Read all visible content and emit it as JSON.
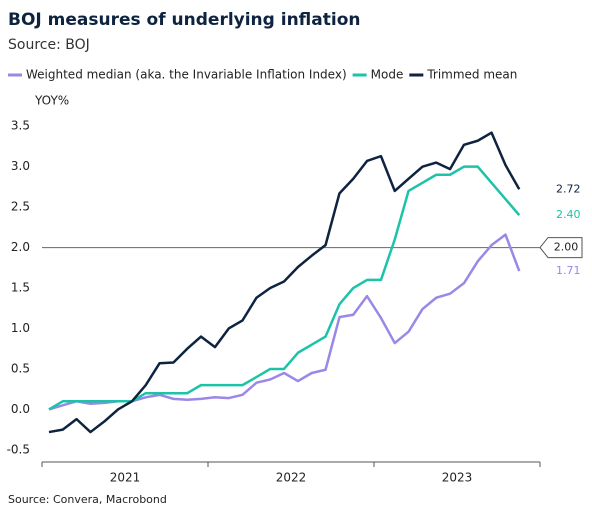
{
  "chart_data": {
    "type": "line",
    "title": "BOJ measures of underlying inflation",
    "subtitle": "Source: BOJ",
    "y_label": "YOY%",
    "source": "Source: Convera, Macrobond",
    "x": [
      2021.042,
      2021.125,
      2021.208,
      2021.292,
      2021.375,
      2021.458,
      2021.542,
      2021.625,
      2021.708,
      2021.792,
      2021.875,
      2021.958,
      2022.042,
      2022.125,
      2022.208,
      2022.292,
      2022.375,
      2022.458,
      2022.542,
      2022.625,
      2022.708,
      2022.792,
      2022.875,
      2022.958,
      2023.042,
      2023.125,
      2023.208,
      2023.292,
      2023.375,
      2023.458,
      2023.542,
      2023.625,
      2023.708,
      2023.792,
      2023.875
    ],
    "xlim": [
      2021,
      2024
    ],
    "xticks": [
      {
        "value": 2021,
        "label": "2021"
      },
      {
        "value": 2022,
        "label": "2022"
      },
      {
        "value": 2023,
        "label": "2023"
      }
    ],
    "ylim": [
      -0.65,
      3.7
    ],
    "yticks": [
      -0.5,
      0.0,
      0.5,
      1.0,
      1.5,
      2.0,
      2.5,
      3.0,
      3.5
    ],
    "ytick_labels": [
      "-0.5",
      "0.0",
      "0.5",
      "1.0",
      "1.5",
      "2.0",
      "2.5",
      "3.0",
      "3.5"
    ],
    "reference_line": {
      "value": 2.0,
      "label": "2.00"
    },
    "series": [
      {
        "name": "Weighted median (aka. the Invariable Inflation Index)",
        "color": "#9b87e8",
        "values": [
          0.0,
          0.05,
          0.1,
          0.07,
          0.08,
          0.1,
          0.1,
          0.15,
          0.18,
          0.13,
          0.12,
          0.13,
          0.15,
          0.14,
          0.18,
          0.33,
          0.37,
          0.45,
          0.35,
          0.45,
          0.49,
          1.14,
          1.17,
          1.4,
          1.13,
          0.82,
          0.96,
          1.24,
          1.38,
          1.43,
          1.56,
          1.83,
          2.03,
          2.16,
          1.71
        ],
        "value_labels": [
          null,
          null,
          null,
          null,
          null,
          null,
          null,
          null,
          null,
          null,
          null,
          null,
          null,
          null,
          null,
          null,
          null,
          null,
          null,
          null,
          null,
          null,
          null,
          null,
          null,
          null,
          null,
          null,
          null,
          null,
          null,
          null,
          null,
          null,
          "1.71"
        ]
      },
      {
        "name": "Mode",
        "color": "#1cc3a8",
        "values": [
          0.0,
          0.1,
          0.1,
          0.1,
          0.1,
          0.1,
          0.1,
          0.2,
          0.2,
          0.2,
          0.2,
          0.3,
          0.3,
          0.3,
          0.3,
          0.4,
          0.5,
          0.5,
          0.7,
          0.8,
          0.9,
          1.3,
          1.5,
          1.6,
          1.6,
          2.1,
          2.7,
          2.8,
          2.9,
          2.9,
          3.0,
          3.0,
          2.8,
          2.6,
          2.4
        ],
        "value_labels": [
          null,
          null,
          null,
          null,
          null,
          null,
          null,
          null,
          null,
          null,
          null,
          null,
          null,
          null,
          null,
          null,
          null,
          null,
          null,
          null,
          null,
          null,
          null,
          null,
          null,
          null,
          null,
          null,
          null,
          null,
          null,
          null,
          null,
          null,
          "2.40"
        ]
      },
      {
        "name": "Trimmed mean",
        "color": "#0e2340",
        "values": [
          -0.28,
          -0.25,
          -0.12,
          -0.28,
          -0.15,
          0.0,
          0.1,
          0.3,
          0.57,
          0.58,
          0.75,
          0.9,
          0.77,
          1.0,
          1.1,
          1.38,
          1.5,
          1.58,
          1.76,
          1.9,
          2.03,
          2.67,
          2.85,
          3.07,
          3.13,
          2.7,
          2.85,
          3.0,
          3.05,
          2.97,
          3.27,
          3.32,
          3.42,
          3.02,
          2.72
        ],
        "value_labels": [
          null,
          null,
          null,
          null,
          null,
          null,
          null,
          null,
          null,
          null,
          null,
          null,
          null,
          null,
          null,
          null,
          null,
          null,
          null,
          null,
          null,
          null,
          null,
          null,
          null,
          null,
          null,
          null,
          null,
          null,
          null,
          null,
          null,
          null,
          "2.72"
        ]
      }
    ]
  }
}
